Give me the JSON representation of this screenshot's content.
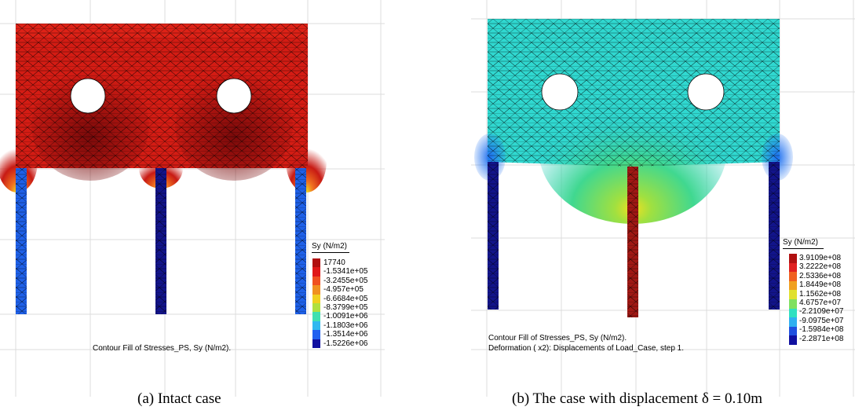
{
  "panels": [
    {
      "id": "a",
      "caption": "(a) Intact case",
      "legend": {
        "title": "Sy (N/m2)",
        "values": [
          "17740",
          "-1.5341e+05",
          "-3.2455e+05",
          "-4.957e+05",
          "-6.6684e+05",
          "-8.3799e+05",
          "-1.0091e+06",
          "-1.1803e+06",
          "-1.3514e+06",
          "-1.5226e+06"
        ],
        "colors": [
          "#b01010",
          "#e01818",
          "#f05020",
          "#f09020",
          "#f0d020",
          "#b0e040",
          "#40e0b0",
          "#30b8f0",
          "#2060f0",
          "#1010a0"
        ]
      },
      "footer": [
        "Contour Fill of Stresses_PS, Sy (N/m2)."
      ]
    },
    {
      "id": "b",
      "caption": "(b) The case with displacement δ = 0.10m",
      "legend": {
        "title": "Sy (N/m2)",
        "values": [
          "3.9109e+08",
          "3.2222e+08",
          "2.5336e+08",
          "1.8449e+08",
          "1.1562e+08",
          "4.6757e+07",
          "-2.2109e+07",
          "-9.0975e+07",
          "-1.5984e+08",
          "-2.2871e+08"
        ],
        "colors": [
          "#b01010",
          "#e02020",
          "#f06020",
          "#f0a020",
          "#e0e030",
          "#80e060",
          "#30e0c0",
          "#30b0f0",
          "#2050e0",
          "#1010a0"
        ]
      },
      "footer": [
        "Contour Fill of Stresses_PS, Sy (N/m2).",
        "Deformation ( x2): Displacements of Load_Case, step 1."
      ]
    }
  ]
}
